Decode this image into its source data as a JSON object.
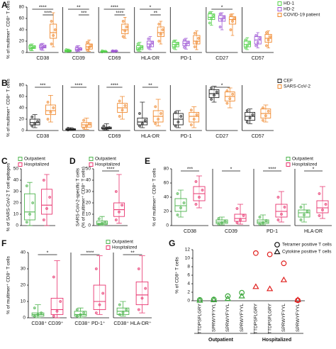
{
  "chart_data": [
    {
      "type": "box",
      "label": "A",
      "ylabel": "% of multimer⁺ CD8⁺ T cells",
      "categories": [
        "CD38",
        "CD39",
        "CD69",
        "HLA-DR",
        "PD-1",
        "CD27",
        "CD57"
      ],
      "ylim": [
        0,
        80
      ],
      "yticks": [
        0,
        20,
        40,
        60,
        80
      ],
      "legend": "upper right",
      "series": [
        {
          "name": "HD-1",
          "color": "#54d14a",
          "boxes": [
            [
              3,
              7,
              9,
              12,
              15
            ],
            [
              1,
              2,
              3,
              4,
              6
            ],
            [
              1,
              1,
              2,
              2,
              3
            ],
            [
              2,
              5,
              8,
              12,
              18
            ],
            [
              5,
              10,
              14,
              18,
              22
            ],
            [
              48,
              58,
              62,
              68,
              72
            ],
            [
              5,
              10,
              14,
              20,
              26
            ]
          ],
          "points": [
            [
              5,
              8,
              10,
              13
            ],
            [
              2,
              3,
              3,
              5
            ],
            [
              1,
              2,
              2,
              3
            ],
            [
              4,
              7,
              10,
              15
            ],
            [
              8,
              12,
              16,
              20
            ],
            [
              52,
              60,
              65,
              70
            ],
            [
              8,
              12,
              17,
              22
            ]
          ]
        },
        {
          "name": "HD-2",
          "color": "#a05ad6",
          "boxes": [
            [
              4,
              8,
              10,
              13,
              16
            ],
            [
              2,
              4,
              5,
              8,
              12
            ],
            [
              1,
              2,
              2,
              3,
              4
            ],
            [
              5,
              10,
              15,
              20,
              28
            ],
            [
              6,
              12,
              16,
              20,
              25
            ],
            [
              40,
              55,
              60,
              65,
              70
            ],
            [
              8,
              15,
              22,
              28,
              35
            ]
          ],
          "points": [
            [
              6,
              9,
              11,
              14
            ],
            [
              3,
              5,
              7,
              10
            ],
            [
              2,
              2,
              3,
              3
            ],
            [
              8,
              12,
              18,
              24
            ],
            [
              9,
              14,
              18,
              22
            ],
            [
              45,
              58,
              62,
              68
            ],
            [
              12,
              18,
              25,
              30
            ]
          ]
        },
        {
          "name": "COVID-19 patient",
          "color": "#f0892e",
          "boxes": [
            [
              10,
              25,
              35,
              50,
              70
            ],
            [
              2,
              6,
              10,
              15,
              22
            ],
            [
              25,
              33,
              40,
              50,
              62
            ],
            [
              15,
              28,
              35,
              45,
              55
            ],
            [
              5,
              15,
              20,
              30,
              38
            ],
            [
              30,
              50,
              58,
              63,
              68
            ],
            [
              8,
              18,
              25,
              32,
              38
            ]
          ],
          "points": [
            [
              15,
              30,
              40,
              55
            ],
            [
              4,
              9,
              13,
              18
            ],
            [
              28,
              38,
              45,
              55
            ],
            [
              20,
              32,
              40,
              50
            ],
            [
              10,
              18,
              25,
              34
            ],
            [
              40,
              55,
              60,
              66
            ],
            [
              12,
              22,
              28,
              35
            ]
          ]
        }
      ],
      "annotations": [
        {
          "category": 0,
          "from": 0,
          "to": 2,
          "text": "****"
        },
        {
          "category": 0,
          "from": 1,
          "to": 2,
          "text": "****"
        },
        {
          "category": 1,
          "from": 0,
          "to": 2,
          "text": "**"
        },
        {
          "category": 1,
          "from": 1,
          "to": 2,
          "text": "***"
        },
        {
          "category": 2,
          "from": 0,
          "to": 2,
          "text": "****"
        },
        {
          "category": 2,
          "from": 1,
          "to": 2,
          "text": "****"
        },
        {
          "category": 3,
          "from": 0,
          "to": 2,
          "text": "*"
        },
        {
          "category": 3,
          "from": 1,
          "to": 2,
          "text": "**"
        },
        {
          "category": 5,
          "from": 0,
          "to": 2,
          "text": "*"
        }
      ]
    },
    {
      "type": "box",
      "label": "B",
      "ylabel": "% of multimer⁺ CD8⁺ T cells",
      "categories": [
        "CD38",
        "CD39",
        "CD69",
        "HLA-DR",
        "PD-1",
        "CD27",
        "CD57"
      ],
      "ylim": [
        0,
        80
      ],
      "yticks": [
        0,
        20,
        40,
        60,
        80
      ],
      "legend": "upper right",
      "series": [
        {
          "name": "CEF",
          "color": "#222222",
          "boxes": [
            [
              5,
              10,
              14,
              20,
              28
            ],
            [
              0,
              1,
              2,
              3,
              5
            ],
            [
              1,
              3,
              4,
              6,
              12
            ],
            [
              5,
              10,
              15,
              22,
              50
            ],
            [
              5,
              10,
              20,
              30,
              35
            ],
            [
              50,
              58,
              65,
              72,
              78
            ],
            [
              12,
              18,
              25,
              32,
              38
            ]
          ],
          "points": [
            [
              8,
              12,
              16,
              24
            ],
            [
              1,
              2,
              2,
              4
            ],
            [
              2,
              4,
              5,
              8
            ],
            [
              8,
              12,
              18,
              30
            ],
            [
              8,
              15,
              25,
              32
            ],
            [
              55,
              62,
              68,
              75
            ],
            [
              15,
              22,
              28,
              35
            ]
          ]
        },
        {
          "name": "SARS-CoV-2",
          "color": "#f0892e",
          "boxes": [
            [
              15,
              28,
              35,
              45,
              62
            ],
            [
              2,
              6,
              10,
              14,
              22
            ],
            [
              20,
              32,
              40,
              48,
              60
            ],
            [
              8,
              15,
              25,
              35,
              55
            ],
            [
              5,
              15,
              25,
              32,
              42
            ],
            [
              40,
              52,
              60,
              68,
              75
            ],
            [
              15,
              22,
              30,
              38,
              45
            ]
          ],
          "points": [
            [
              20,
              32,
              40,
              50
            ],
            [
              4,
              8,
              12,
              18
            ],
            [
              25,
              36,
              44,
              52
            ],
            [
              12,
              20,
              30,
              42
            ],
            [
              10,
              20,
              28,
              36
            ],
            [
              48,
              56,
              64,
              70
            ],
            [
              18,
              26,
              34,
              40
            ]
          ]
        }
      ],
      "annotations": [
        {
          "category": 0,
          "from": 0,
          "to": 1,
          "text": "***"
        },
        {
          "category": 1,
          "from": 0,
          "to": 1,
          "text": "****"
        },
        {
          "category": 2,
          "from": 0,
          "to": 1,
          "text": "****"
        },
        {
          "category": 3,
          "from": 0,
          "to": 1,
          "text": "**"
        },
        {
          "category": 5,
          "from": 0,
          "to": 1,
          "text": "*"
        }
      ]
    },
    {
      "type": "box",
      "label": "C",
      "ylabel": "% of SARS-CoV-2 T cell epitopes",
      "categories": [
        null
      ],
      "ylim": [
        0,
        50
      ],
      "yticks": [
        0,
        10,
        20,
        30,
        40,
        50
      ],
      "legend": "upper left",
      "series": [
        {
          "name": "Outpatient",
          "color": "#4bb34b",
          "boxes": [
            [
              0,
              5,
              12,
              28,
              38
            ]
          ],
          "points": [
            [
              3,
              10,
              20,
              35
            ]
          ]
        },
        {
          "name": "Hospitalized",
          "color": "#e8336e",
          "boxes": [
            [
              0,
              10,
              18,
              32,
              45
            ]
          ],
          "points": [
            [
              5,
              15,
              25,
              40
            ]
          ]
        }
      ],
      "annotations": []
    },
    {
      "type": "box",
      "label": "D",
      "ylabel": [
        "SARS-CoV-2-specific T cells",
        "(% of multimer⁺ CD8⁺ T cells)"
      ],
      "categories": [
        null
      ],
      "ylim": [
        0,
        50
      ],
      "yticks": [
        0,
        10,
        20,
        30,
        40,
        50
      ],
      "legend": "upper left",
      "series": [
        {
          "name": "Outpatient",
          "color": "#4bb34b",
          "boxes": [
            [
              0,
              1,
              2,
              4,
              8
            ]
          ],
          "points": [
            [
              1,
              2,
              3,
              6
            ]
          ]
        },
        {
          "name": "Hospitalized",
          "color": "#e8336e",
          "boxes": [
            [
              2,
              8,
              14,
              20,
              45
            ]
          ],
          "points": [
            [
              5,
              12,
              18,
              30
            ]
          ]
        }
      ],
      "annotations": [
        {
          "category": 0,
          "from": 0,
          "to": 1,
          "text": "****"
        }
      ]
    },
    {
      "type": "box",
      "label": "E",
      "ylabel": "% of multimer⁺ CD8⁺ T cells",
      "categories": [
        "CD38",
        "CD39",
        "PD-1",
        "HLA-DR"
      ],
      "ylim": [
        0,
        80
      ],
      "yticks": [
        0,
        20,
        40,
        60,
        80
      ],
      "legend": "upper right",
      "series": [
        {
          "name": "Outpatient",
          "color": "#4bb34b",
          "boxes": [
            [
              12,
              20,
              28,
              38,
              50
            ],
            [
              1,
              3,
              5,
              8,
              12
            ],
            [
              1,
              3,
              5,
              8,
              15
            ],
            [
              5,
              12,
              18,
              22,
              30
            ]
          ],
          "points": [
            [
              15,
              25,
              32,
              45
            ],
            [
              2,
              4,
              6,
              10
            ],
            [
              2,
              4,
              7,
              12
            ],
            [
              8,
              15,
              20,
              26
            ]
          ]
        },
        {
          "name": "Hospitalized",
          "color": "#e8336e",
          "boxes": [
            [
              25,
              35,
              45,
              55,
              70
            ],
            [
              2,
              6,
              10,
              16,
              30
            ],
            [
              5,
              12,
              20,
              30,
              48
            ],
            [
              10,
              18,
              25,
              35,
              55
            ]
          ],
          "points": [
            [
              30,
              40,
              50,
              62
            ],
            [
              4,
              8,
              14,
              24
            ],
            [
              8,
              16,
              26,
              40
            ],
            [
              14,
              22,
              30,
              45
            ]
          ]
        }
      ],
      "annotations": [
        {
          "category": 0,
          "from": 0,
          "to": 1,
          "text": "***"
        },
        {
          "category": 1,
          "from": 0,
          "to": 1,
          "text": "*"
        },
        {
          "category": 2,
          "from": 0,
          "to": 1,
          "text": "****"
        },
        {
          "category": 3,
          "from": 0,
          "to": 1,
          "text": "*"
        }
      ]
    },
    {
      "type": "box",
      "label": "F",
      "ylabel": "% of multimer⁺ CD8⁺ T cells",
      "categories": [
        "CD38⁺ CD39⁺",
        "CD38⁺ PD-1⁺",
        "CD38⁺ HLA-DR⁺"
      ],
      "ylim": [
        0,
        40
      ],
      "yticks": [
        0,
        10,
        20,
        30,
        40
      ],
      "legend": "upper right",
      "series": [
        {
          "name": "Outpatient",
          "color": "#4bb34b",
          "boxes": [
            [
              0,
              1,
              2,
              3,
              8
            ],
            [
              0,
              1,
              2,
              4,
              6
            ],
            [
              1,
              2,
              4,
              6,
              10
            ]
          ],
          "points": [
            [
              1,
              2,
              3,
              6
            ],
            [
              1,
              2,
              3,
              5
            ],
            [
              2,
              3,
              5,
              8
            ]
          ]
        },
        {
          "name": "Hospitalized",
          "color": "#e8336e",
          "boxes": [
            [
              0,
              2,
              5,
              12,
              35
            ],
            [
              2,
              5,
              10,
              20,
              38
            ],
            [
              3,
              8,
              14,
              22,
              38
            ]
          ],
          "points": [
            [
              1,
              4,
              10,
              25
            ],
            [
              3,
              8,
              15,
              30
            ],
            [
              5,
              12,
              18,
              30
            ]
          ]
        }
      ],
      "annotations": [
        {
          "category": 0,
          "from": 0,
          "to": 1,
          "text": "*"
        },
        {
          "category": 1,
          "from": 0,
          "to": 1,
          "text": "****"
        },
        {
          "category": 2,
          "from": 0,
          "to": 1,
          "text": "**"
        }
      ]
    },
    {
      "type": "dot",
      "label": "G",
      "ylabel": "% of CD8⁺ T cells",
      "ylim": [
        0,
        12
      ],
      "yticks": [
        0,
        2,
        4,
        6,
        8,
        10,
        12
      ],
      "legend": "upper right",
      "series": [
        {
          "name": "Tetramer positive T cells",
          "marker": "circle"
        },
        {
          "name": "Cytokine positive T cells",
          "marker": "triangle"
        }
      ],
      "groups": [
        {
          "label": "Outpatient",
          "color": "#3aa63a",
          "categories": [
            "TTDPSFLGRY",
            "SPRWYFYYL",
            "SPRWYFYYL",
            "SPRWYFYYL"
          ],
          "values": [
            [
              0.2,
              0.3,
              1.1,
              1.9
            ],
            [
              0.1,
              0.2,
              0.5,
              1.1
            ]
          ]
        },
        {
          "label": "Hospitalized",
          "color": "#e0201e",
          "categories": [
            "TTDPSFLGRY",
            "TTDPSFLGRY",
            "SPRWYFYYL",
            "SPRWYFYYL"
          ],
          "values": [
            [
              11.2,
              10.9,
              8.8,
              0.1
            ],
            [
              3.3,
              2.8,
              4.9,
              0.2
            ]
          ]
        }
      ]
    }
  ]
}
